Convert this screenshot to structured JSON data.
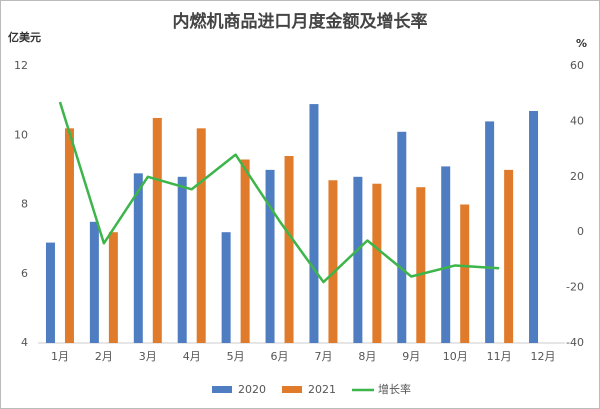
{
  "chart_data": {
    "type": "bar-line",
    "title": "内燃机商品进口月度金额及增长率",
    "y_label": "亿美元",
    "y2_label": "%",
    "categories": [
      "1月",
      "2月",
      "3月",
      "4月",
      "5月",
      "6月",
      "7月",
      "8月",
      "9月",
      "10月",
      "11月",
      "12月"
    ],
    "series": [
      {
        "name": "2020",
        "type": "bar",
        "color": "#4f7dc1",
        "values": [
          6.9,
          7.5,
          8.9,
          8.8,
          7.2,
          9.0,
          10.9,
          8.8,
          10.1,
          9.1,
          10.4,
          10.7
        ]
      },
      {
        "name": "2021",
        "type": "bar",
        "color": "#e07b2b",
        "values": [
          10.2,
          7.2,
          10.5,
          10.2,
          9.3,
          9.4,
          8.7,
          8.6,
          8.5,
          8.0,
          9.0,
          null
        ]
      },
      {
        "name": "增长率",
        "type": "line",
        "axis": "y2",
        "color": "#3db54a",
        "values": [
          47,
          -4,
          20,
          15.5,
          28,
          4,
          -18,
          -3,
          -16,
          -12,
          -13,
          null
        ]
      }
    ],
    "ylim": [
      4,
      12
    ],
    "yticks": [
      4,
      6,
      8,
      10,
      12
    ],
    "y2lim": [
      -40,
      60
    ],
    "y2ticks": [
      -40,
      -20,
      0,
      20,
      40,
      60
    ],
    "grid": false,
    "legend": "bottom"
  }
}
